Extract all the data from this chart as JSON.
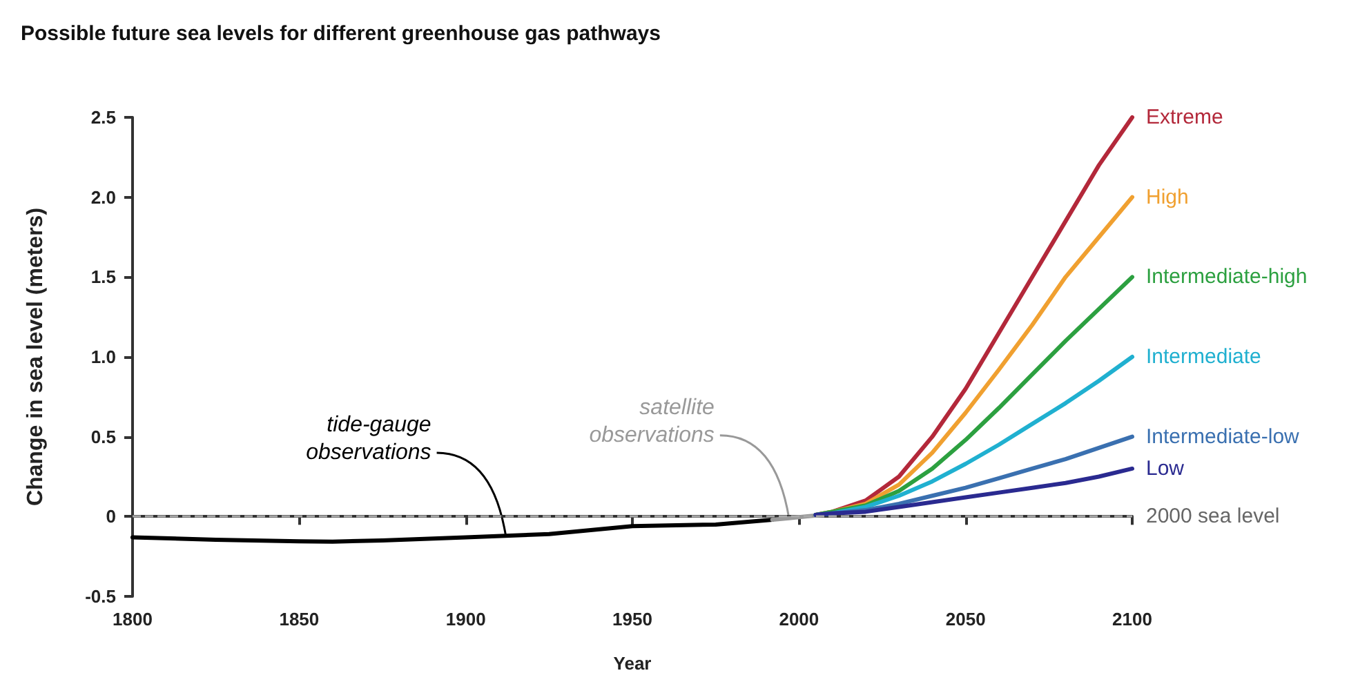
{
  "chart_data": {
    "type": "line",
    "title": "Possible future sea levels for different greenhouse gas pathways",
    "xlabel": "Year",
    "ylabel": "Change in sea level (meters)",
    "xlim": [
      1800,
      2100
    ],
    "xticks": [
      1800,
      1850,
      1900,
      1950,
      2000,
      2050,
      2100
    ],
    "ylim": [
      -0.5,
      2.5
    ],
    "yticks": [
      -0.5,
      0,
      0.5,
      {
        "value": 1,
        "label": "1.0"
      },
      1.5,
      {
        "value": 2,
        "label": "2.0"
      },
      2.5
    ],
    "grid": false,
    "legend": false,
    "marker": "none",
    "line_style": "solid",
    "ref_lines": [
      {
        "axis": "y",
        "value": 0,
        "label": "2000 sea level",
        "color": "#aaaaaa",
        "line_style": "dashed"
      }
    ],
    "annotations": [
      {
        "text": "tide-gauge\nobservations",
        "x": 1912,
        "y": -0.12
      },
      {
        "text": "satellite\nobservations",
        "x": 1997,
        "y": -0.01
      }
    ],
    "series": [
      {
        "color": "#000000",
        "x": [
          1800,
          1825,
          1850,
          1860,
          1875,
          1900,
          1925,
          1950,
          1975,
          1992
        ],
        "values": [
          -0.13,
          -0.145,
          -0.155,
          -0.157,
          -0.15,
          -0.13,
          -0.11,
          -0.06,
          -0.05,
          -0.02
        ]
      },
      {
        "color": "#999999",
        "x": [
          1992,
          1997,
          2002,
          2007
        ],
        "values": [
          -0.02,
          -0.01,
          0,
          0.01
        ]
      },
      {
        "name": "Extreme",
        "color": "#b3283a",
        "x": [
          2005,
          2010,
          2020,
          2030,
          2040,
          2050,
          2060,
          2070,
          2080,
          2090,
          2100
        ],
        "values": [
          0.01,
          0.03,
          0.1,
          0.25,
          0.5,
          0.8,
          1.15,
          1.5,
          1.85,
          2.2,
          2.5
        ]
      },
      {
        "name": "High",
        "color": "#f0a030",
        "x": [
          2005,
          2010,
          2020,
          2030,
          2040,
          2050,
          2060,
          2070,
          2080,
          2090,
          2100
        ],
        "values": [
          0.01,
          0.03,
          0.08,
          0.2,
          0.4,
          0.65,
          0.92,
          1.2,
          1.5,
          1.75,
          2.0
        ]
      },
      {
        "name": "Intermediate-high",
        "color": "#2ca040",
        "x": [
          2005,
          2010,
          2020,
          2030,
          2040,
          2050,
          2060,
          2070,
          2080,
          2090,
          2100
        ],
        "values": [
          0.01,
          0.03,
          0.07,
          0.16,
          0.3,
          0.48,
          0.68,
          0.89,
          1.1,
          1.3,
          1.5
        ]
      },
      {
        "name": "Intermediate",
        "color": "#20b0d0",
        "x": [
          2005,
          2010,
          2020,
          2030,
          2040,
          2050,
          2060,
          2070,
          2080,
          2090,
          2100
        ],
        "values": [
          0.01,
          0.02,
          0.06,
          0.13,
          0.22,
          0.33,
          0.45,
          0.58,
          0.71,
          0.85,
          1.0
        ]
      },
      {
        "name": "Intermediate-low",
        "color": "#3a70b0",
        "x": [
          2005,
          2010,
          2020,
          2030,
          2040,
          2050,
          2060,
          2070,
          2080,
          2090,
          2100
        ],
        "values": [
          0.01,
          0.02,
          0.04,
          0.08,
          0.13,
          0.18,
          0.24,
          0.3,
          0.36,
          0.43,
          0.5
        ]
      },
      {
        "name": "Low",
        "color": "#2a2a90",
        "x": [
          2005,
          2010,
          2020,
          2030,
          2040,
          2050,
          2060,
          2070,
          2080,
          2090,
          2100
        ],
        "values": [
          0.01,
          0.02,
          0.03,
          0.06,
          0.09,
          0.12,
          0.15,
          0.18,
          0.21,
          0.25,
          0.3
        ]
      }
    ]
  }
}
